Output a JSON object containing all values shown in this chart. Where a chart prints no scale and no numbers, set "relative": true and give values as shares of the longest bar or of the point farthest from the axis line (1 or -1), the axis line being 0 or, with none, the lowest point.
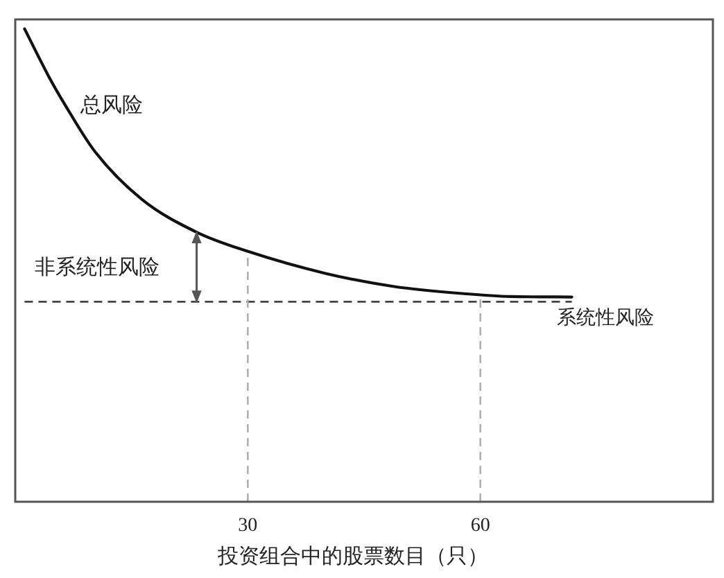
{
  "chart_data": {
    "type": "line",
    "relative": true,
    "xlabel": "投资组合中的股票数目（只）",
    "xlim": [
      0,
      90
    ],
    "xticks": [
      30,
      60
    ],
    "x": [
      1.2,
      4.3,
      6.4,
      10.3,
      16.3,
      23.4,
      29.9,
      40,
      48.9,
      57.9,
      63.9,
      71.8
    ],
    "series": [
      {
        "name": "总风险",
        "color": "#111111",
        "values": [
          1.0,
          0.9,
          0.84,
          0.74,
          0.64,
          0.57,
          0.53,
          0.483,
          0.455,
          0.44,
          0.434,
          0.433
        ]
      }
    ],
    "ref_lines": [
      {
        "axis": "y",
        "value": 0.423,
        "label": "系统性风险",
        "color": "#444444",
        "line_style": "dashed"
      },
      {
        "axis": "x",
        "value": 30,
        "label": null,
        "color": "#b0b0b0",
        "line_style": "dashed"
      },
      {
        "axis": "x",
        "value": 60,
        "label": null,
        "color": "#b0b0b0",
        "line_style": "dashed"
      }
    ],
    "annotations": [
      {
        "text": "非系统性风险",
        "x": 23.4,
        "y": 0.57
      }
    ]
  }
}
